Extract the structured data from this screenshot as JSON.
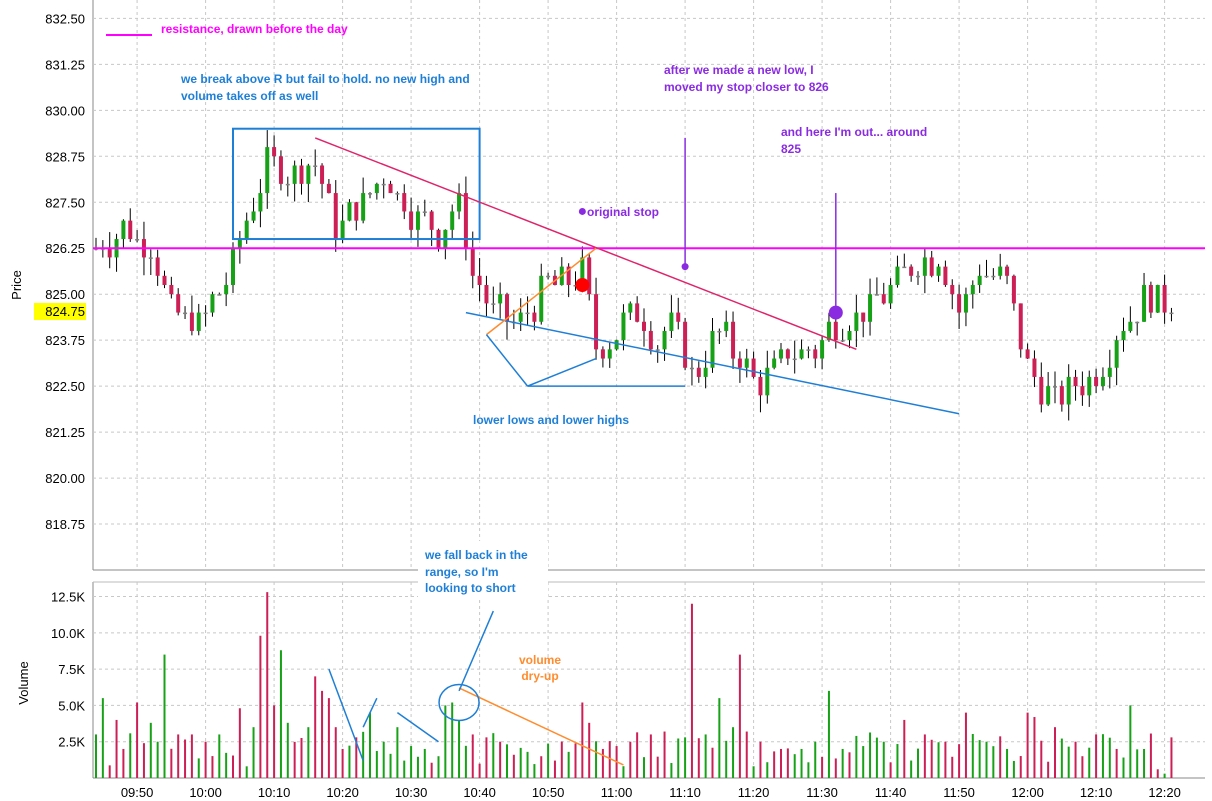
{
  "chart_data": [
    {
      "type": "candlestick",
      "ylabel": "Price",
      "ylim": [
        817.5,
        833.0
      ],
      "y_ticks": [
        "832.50",
        "831.25",
        "830.00",
        "828.75",
        "827.50",
        "826.25",
        "825.00",
        "823.75",
        "822.50",
        "821.25",
        "820.00",
        "818.75"
      ],
      "y_tick_values": [
        832.5,
        831.25,
        830.0,
        828.75,
        827.5,
        826.25,
        825.0,
        823.75,
        822.5,
        821.25,
        820.0,
        818.75
      ],
      "last_price_label": "824.75",
      "last_price": 824.75,
      "grid": true,
      "x_ticks": [
        "09:50",
        "10:00",
        "10:10",
        "10:20",
        "10:30",
        "10:40",
        "10:50",
        "11:00",
        "11:10",
        "11:20",
        "11:30",
        "11:40",
        "11:50",
        "12:00",
        "12:10",
        "12:20"
      ],
      "x_tick_values": [
        "09:50",
        "10:00",
        "10:10",
        "10:20",
        "10:30",
        "10:40",
        "10:50",
        "11:00",
        "11:10",
        "11:20",
        "11:30",
        "11:40",
        "11:50",
        "12:00",
        "12:10",
        "12:20"
      ],
      "x_start": "09:44",
      "x_end": "12:21",
      "bar_interval_min": 1,
      "close_start": 826.25,
      "close_path": [
        [
          "09:44",
          826.25
        ],
        [
          "09:48",
          826.75
        ],
        [
          "09:52",
          826.25
        ],
        [
          "09:55",
          824.5
        ],
        [
          "09:59",
          824.25
        ],
        [
          "10:03",
          825.25
        ],
        [
          "10:06",
          827.0
        ],
        [
          "10:09",
          828.5
        ],
        [
          "10:12",
          828.25
        ],
        [
          "10:16",
          828.5
        ],
        [
          "10:19",
          826.75
        ],
        [
          "10:23",
          827.5
        ],
        [
          "10:26",
          828.25
        ],
        [
          "10:30",
          827.25
        ],
        [
          "10:34",
          826.75
        ],
        [
          "10:37",
          827.5
        ],
        [
          "10:39",
          825.5
        ],
        [
          "10:42",
          824.5
        ],
        [
          "10:46",
          824.25
        ],
        [
          "10:50",
          825.25
        ],
        [
          "10:54",
          825.5
        ],
        [
          "10:55",
          825.75
        ],
        [
          "10:57",
          823.5
        ],
        [
          "11:00",
          824.0
        ],
        [
          "11:03",
          824.5
        ],
        [
          "11:06",
          823.75
        ],
        [
          "11:08",
          824.25
        ],
        [
          "11:11",
          822.75
        ],
        [
          "11:15",
          824.0
        ],
        [
          "11:18",
          823.25
        ],
        [
          "11:21",
          822.5
        ],
        [
          "11:25",
          823.5
        ],
        [
          "11:29",
          823.5
        ],
        [
          "11:32",
          824.25
        ],
        [
          "11:36",
          824.5
        ],
        [
          "11:39",
          825.0
        ],
        [
          "11:43",
          825.75
        ],
        [
          "11:47",
          826.0
        ],
        [
          "11:50",
          824.5
        ],
        [
          "11:53",
          825.75
        ],
        [
          "11:57",
          825.25
        ],
        [
          "12:00",
          823.0
        ],
        [
          "12:04",
          822.0
        ],
        [
          "12:07",
          822.5
        ],
        [
          "12:10",
          822.75
        ],
        [
          "12:14",
          824.25
        ],
        [
          "12:18",
          825.0
        ],
        [
          "12:21",
          824.75
        ]
      ],
      "reference_lines": [
        {
          "name": "resistance",
          "value": 826.25,
          "color": "#ff00ff"
        }
      ],
      "trendlines": [
        {
          "name": "descending-highs",
          "color": "#e0246a",
          "from": [
            "10:16",
            829.25
          ],
          "to": [
            "11:35",
            823.5
          ]
        },
        {
          "name": "descending-lows",
          "color": "#1e7fd6",
          "from": [
            "10:38",
            824.5
          ],
          "to": [
            "11:50",
            821.75
          ]
        },
        {
          "name": "rising-retrace",
          "color": "#ff8c2e",
          "from": [
            "10:41",
            823.9
          ],
          "to": [
            "10:57",
            826.25
          ]
        },
        {
          "name": "stop-marker-line",
          "color": "#8a2be2",
          "from": [
            "11:10",
            829.25
          ],
          "to": [
            "11:10",
            825.75
          ]
        },
        {
          "name": "exit-marker-line",
          "color": "#8a2be2",
          "from": [
            "11:32",
            827.75
          ],
          "to": [
            "11:32",
            824.5
          ]
        },
        {
          "name": "lower-lows-arrow-a",
          "color": "#1e7fd6",
          "from": [
            "10:41",
            823.9
          ],
          "to": [
            "10:47",
            822.5
          ]
        },
        {
          "name": "lower-lows-arrow-b",
          "color": "#1e7fd6",
          "from": [
            "10:47",
            822.5
          ],
          "to": [
            "10:57",
            823.25
          ]
        },
        {
          "name": "lower-lows-hline",
          "color": "#1e7fd6",
          "from": [
            "10:47",
            822.5
          ],
          "to": [
            "11:10",
            822.5
          ]
        }
      ],
      "markers": [
        {
          "name": "entry",
          "time": "10:55",
          "price": 825.25,
          "color": "#ff0000",
          "size": "large"
        },
        {
          "name": "original-stop",
          "time": "10:55",
          "price": 827.25,
          "color": "#8a2be2",
          "size": "small"
        },
        {
          "name": "moved-stop",
          "time": "11:10",
          "price": 825.75,
          "color": "#8a2be2",
          "size": "small"
        },
        {
          "name": "exit",
          "time": "11:32",
          "price": 824.5,
          "color": "#8a2be2",
          "size": "large"
        }
      ],
      "range_box": {
        "color": "#1e7fd6",
        "x": [
          "10:04",
          "10:40"
        ],
        "y": [
          826.5,
          829.5
        ]
      }
    },
    {
      "type": "bar",
      "ylabel": "Volume",
      "ylim": [
        0,
        13500
      ],
      "y_ticks": [
        "12.5K",
        "10.0K",
        "7.5K",
        "5.0K",
        "2.5K"
      ],
      "y_tick_values": [
        12500,
        10000,
        7500,
        5000,
        2500
      ],
      "grid": true,
      "x_start": "09:44",
      "volume_anchors": [
        [
          "09:44",
          3000
        ],
        [
          "09:45",
          5500
        ],
        [
          "09:47",
          4000
        ],
        [
          "09:48",
          2000
        ],
        [
          "09:50",
          5200
        ],
        [
          "09:52",
          3800
        ],
        [
          "09:53",
          2500
        ],
        [
          "09:54",
          8500
        ],
        [
          "09:56",
          3000
        ],
        [
          "09:58",
          3000
        ],
        [
          "10:00",
          2500
        ],
        [
          "10:02",
          3000
        ],
        [
          "10:05",
          4800
        ],
        [
          "10:07",
          3500
        ],
        [
          "10:08",
          9800
        ],
        [
          "10:09",
          12800
        ],
        [
          "10:10",
          5000
        ],
        [
          "10:11",
          8800
        ],
        [
          "10:12",
          3800
        ],
        [
          "10:15",
          3500
        ],
        [
          "10:16",
          7000
        ],
        [
          "10:17",
          6000
        ],
        [
          "10:18",
          5500
        ],
        [
          "10:19",
          3500
        ],
        [
          "10:20",
          2000
        ],
        [
          "10:22",
          2800
        ],
        [
          "10:24",
          4500
        ],
        [
          "10:26",
          2500
        ],
        [
          "10:28",
          3500
        ],
        [
          "10:30",
          2200
        ],
        [
          "10:32",
          2000
        ],
        [
          "10:34",
          1500
        ],
        [
          "10:35",
          5000
        ],
        [
          "10:36",
          5200
        ],
        [
          "10:37",
          4000
        ],
        [
          "10:39",
          3000
        ],
        [
          "10:41",
          2800
        ],
        [
          "10:43",
          2500
        ],
        [
          "10:45",
          1600
        ],
        [
          "10:47",
          1800
        ],
        [
          "10:49",
          1500
        ],
        [
          "10:51",
          1200
        ],
        [
          "10:53",
          1800
        ],
        [
          "10:55",
          5200
        ],
        [
          "10:56",
          3800
        ],
        [
          "10:58",
          2000
        ],
        [
          "11:00",
          2200
        ],
        [
          "11:02",
          2500
        ],
        [
          "11:05",
          3000
        ],
        [
          "11:07",
          3200
        ],
        [
          "11:10",
          2800
        ],
        [
          "11:11",
          12000
        ],
        [
          "11:13",
          3000
        ],
        [
          "11:15",
          5500
        ],
        [
          "11:17",
          3500
        ],
        [
          "11:18",
          8500
        ],
        [
          "11:19",
          3200
        ],
        [
          "11:21",
          2500
        ],
        [
          "11:24",
          2000
        ],
        [
          "11:27",
          2000
        ],
        [
          "11:29",
          2500
        ],
        [
          "11:31",
          6000
        ],
        [
          "11:33",
          2000
        ],
        [
          "11:36",
          2200
        ],
        [
          "11:39",
          2500
        ],
        [
          "11:42",
          4000
        ],
        [
          "11:45",
          3000
        ],
        [
          "11:48",
          2500
        ],
        [
          "11:51",
          4500
        ],
        [
          "11:54",
          2500
        ],
        [
          "11:57",
          2000
        ],
        [
          "12:00",
          4500
        ],
        [
          "12:01",
          4200
        ],
        [
          "12:04",
          3500
        ],
        [
          "12:07",
          2500
        ],
        [
          "12:10",
          3000
        ],
        [
          "12:13",
          2000
        ],
        [
          "12:15",
          5000
        ],
        [
          "12:17",
          2000
        ],
        [
          "12:19",
          600
        ],
        [
          "12:20",
          300
        ]
      ],
      "trendlines": [
        {
          "name": "vol-drop-a",
          "color": "#1e7fd6",
          "from": [
            "10:18",
            7500
          ],
          "to": [
            "10:23",
            1200
          ]
        },
        {
          "name": "vol-drop-b",
          "color": "#1e7fd6",
          "from": [
            "10:23",
            3500
          ],
          "to": [
            "10:25",
            5500
          ]
        },
        {
          "name": "vol-drop-c",
          "color": "#1e7fd6",
          "from": [
            "10:28",
            4500
          ],
          "to": [
            "10:34",
            2500
          ]
        },
        {
          "name": "dry-up",
          "color": "#ff8c2e",
          "from": [
            "10:37",
            6200
          ],
          "to": [
            "11:01",
            900
          ]
        },
        {
          "name": "pointer-to-circle",
          "color": "#1e7fd6",
          "from": [
            "10:42",
            11500
          ],
          "to": [
            "10:37",
            6000
          ]
        }
      ],
      "circle": {
        "name": "volume-circle",
        "center": [
          "10:37",
          5200
        ],
        "color": "#1e7fd6"
      }
    }
  ],
  "annotations": {
    "legend_label": "resistance, drawn before the day",
    "break_line1": "we break above R but fail to hold. no new high and",
    "break_line2": "volume takes off as well",
    "newlow_line1": "after we made a new low, I",
    "newlow_line2": "moved my stop closer to 826",
    "out_line1": "and here I'm out... around",
    "out_line2": "825",
    "original_stop": "original stop",
    "lower_lows": "lower lows and lower highs",
    "fall_line1": "we fall back in the",
    "fall_line2": "range, so I'm",
    "fall_line3": "looking to short",
    "volume_label": "volume",
    "dryup_label": "dry-up"
  },
  "colors": {
    "up": "#17a117",
    "down": "#cc1f55",
    "neutral": "#7f7f7f",
    "resistance": "#ff00ff",
    "blue": "#1e7fd6",
    "purple": "#8a2be2",
    "orange": "#ff8c2e",
    "pink": "#e0246a",
    "highlight": "#ffff00"
  }
}
